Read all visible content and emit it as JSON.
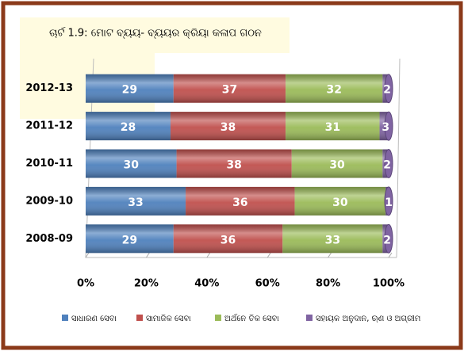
{
  "chart_data": {
    "type": "stacked-barh",
    "title": "ଚାର୍ଟ 1.9: ମୋଟ ବ୍ୟୟ- ବ୍ୟୟର କ୍ରିୟା କଳାପ ଗଠନ",
    "categories": [
      "2012-13",
      "2011-12",
      "2010-11",
      "2009-10",
      "2008-09"
    ],
    "series": [
      {
        "name": "ସାଧାରଣ ସେବା",
        "color": "#4f81bd",
        "values": [
          29,
          28,
          30,
          33,
          29
        ]
      },
      {
        "name": "ସାମାଜିକ ସେବା",
        "color": "#c0504d",
        "values": [
          37,
          38,
          38,
          36,
          36
        ]
      },
      {
        "name": "ଅର୍ଥନେ ତିକ ସେବା",
        "color": "#9bbb59",
        "values": [
          32,
          31,
          30,
          30,
          33
        ]
      },
      {
        "name": "ସହାୟକ ଅନୁଦାନ, ଋଣ ଓ ଅଗ୍ରୀମ",
        "color": "#8064a2",
        "values": [
          2,
          3,
          2,
          1,
          2
        ]
      }
    ],
    "xlim": [
      0,
      100
    ],
    "xticks": [
      {
        "value": 0,
        "label": "0%"
      },
      {
        "value": 20,
        "label": "20%"
      },
      {
        "value": 40,
        "label": "40%"
      },
      {
        "value": 60,
        "label": "60%"
      },
      {
        "value": 80,
        "label": "80%"
      },
      {
        "value": 100,
        "label": "100%"
      }
    ],
    "legend": "bottom"
  }
}
